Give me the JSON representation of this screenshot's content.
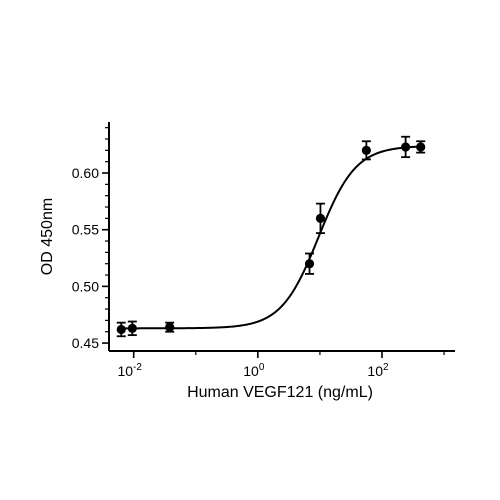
{
  "chart_data": {
    "type": "scatter",
    "title": "",
    "xlabel": "Human VEGF121 (ng/mL)",
    "ylabel": "OD 450nm",
    "x_scale": "log10",
    "xlim": [
      0.004,
      1500
    ],
    "ylim": [
      0.443,
      0.645
    ],
    "x_ticks": [
      {
        "value": 0.01,
        "label_base": "10",
        "label_exp": "-2"
      },
      {
        "value": 1,
        "label_base": "10",
        "label_exp": "0"
      },
      {
        "value": 100,
        "label_base": "10",
        "label_exp": "2"
      }
    ],
    "y_ticks": [
      {
        "value": 0.45,
        "label": "0.45"
      },
      {
        "value": 0.5,
        "label": "0.50"
      },
      {
        "value": 0.55,
        "label": "0.55"
      },
      {
        "value": 0.6,
        "label": "0.60"
      }
    ],
    "series": [
      {
        "points": [
          {
            "x": 0.0063,
            "y": 0.462,
            "err": 0.006
          },
          {
            "x": 0.0095,
            "y": 0.463,
            "err": 0.006
          },
          {
            "x": 0.038,
            "y": 0.464,
            "err": 0.004
          },
          {
            "x": 6.8,
            "y": 0.52,
            "err": 0.009
          },
          {
            "x": 10.2,
            "y": 0.56,
            "err": 0.013
          },
          {
            "x": 56,
            "y": 0.62,
            "err": 0.008
          },
          {
            "x": 240,
            "y": 0.623,
            "err": 0.009
          },
          {
            "x": 420,
            "y": 0.623,
            "err": 0.005
          }
        ]
      }
    ],
    "fit": {
      "model": "4PL",
      "bottom": 0.463,
      "top": 0.624,
      "ec50": 9.5,
      "hill": 1.45
    },
    "grid": false,
    "legend": "none"
  }
}
